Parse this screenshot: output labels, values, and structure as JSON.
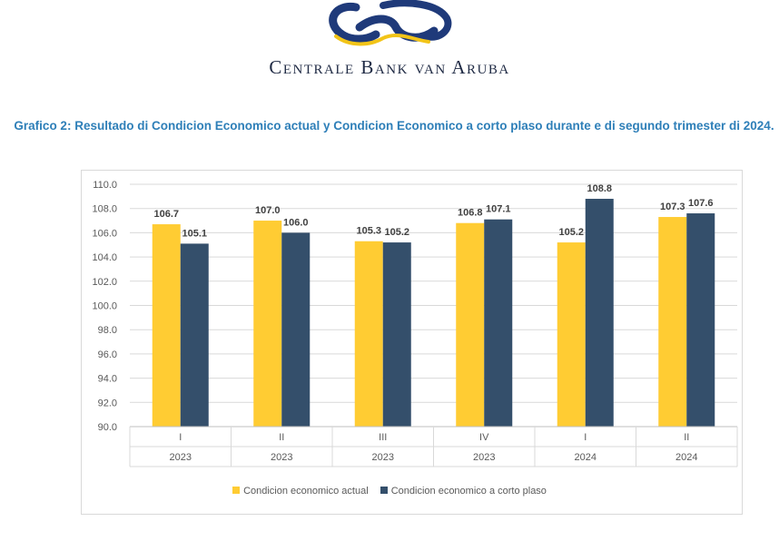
{
  "header": {
    "bank_name": "Centrale Bank van Aruba",
    "logo_colors": {
      "blue": "#1f3a7a",
      "gold": "#f2c418"
    }
  },
  "title": "Grafico 2: Resultado di Condicion Economico actual y Condicion Economico a corto plaso durante e di segundo trimester di 2024.",
  "chart_data": {
    "type": "bar",
    "categories": [
      {
        "quarter": "I",
        "year": "2023"
      },
      {
        "quarter": "II",
        "year": "2023"
      },
      {
        "quarter": "III",
        "year": "2023"
      },
      {
        "quarter": "IV",
        "year": "2023"
      },
      {
        "quarter": "I",
        "year": "2024"
      },
      {
        "quarter": "II",
        "year": "2024"
      }
    ],
    "series": [
      {
        "name": "Condicion economico actual",
        "color": "#ffcc33",
        "values": [
          106.7,
          107.0,
          105.3,
          106.8,
          105.2,
          107.3
        ]
      },
      {
        "name": "Condicion economico a corto plaso",
        "color": "#344f6b",
        "values": [
          105.1,
          106.0,
          105.2,
          107.1,
          108.8,
          107.6
        ]
      }
    ],
    "ylim": [
      90.0,
      110.0
    ],
    "yticks": [
      "90.0",
      "92.0",
      "94.0",
      "96.0",
      "98.0",
      "100.0",
      "102.0",
      "104.0",
      "106.0",
      "108.0",
      "110.0"
    ],
    "grid": true,
    "legend_position": "bottom"
  }
}
